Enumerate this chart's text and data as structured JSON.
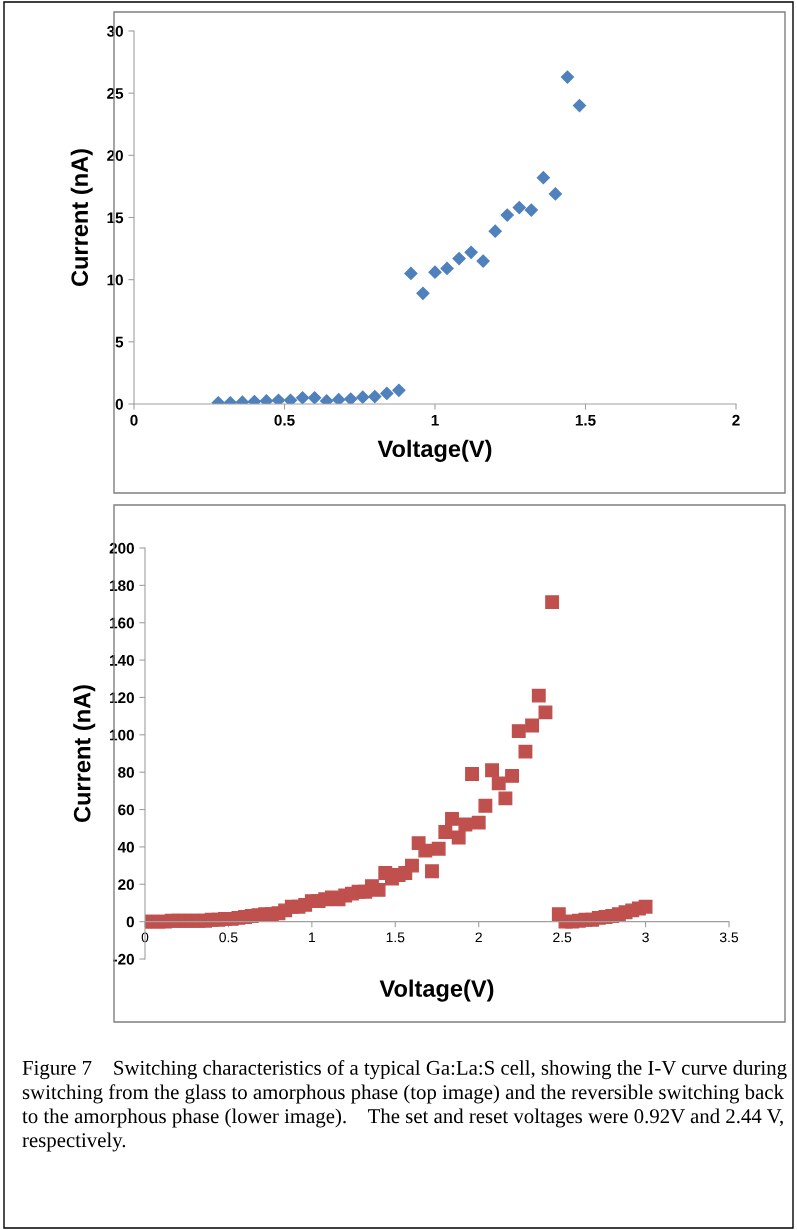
{
  "chart_data": [
    {
      "type": "scatter",
      "xlabel": "Voltage(V)",
      "ylabel": "Current (nA)",
      "marker": "diamond",
      "grid": false,
      "legend": false,
      "xlim": [
        0,
        2
      ],
      "xticks": [
        0,
        0.5,
        1,
        1.5,
        2
      ],
      "ylim": [
        0,
        30
      ],
      "yticks": [
        0,
        5,
        10,
        15,
        20,
        25,
        30
      ],
      "x": [
        0.28,
        0.32,
        0.36,
        0.4,
        0.44,
        0.48,
        0.52,
        0.56,
        0.6,
        0.64,
        0.68,
        0.72,
        0.76,
        0.8,
        0.84,
        0.88,
        0.92,
        0.96,
        1.0,
        1.04,
        1.08,
        1.12,
        1.16,
        1.2,
        1.24,
        1.28,
        1.32,
        1.36,
        1.4,
        1.44,
        1.48
      ],
      "series": [
        {
          "color": "#4f81bd",
          "values": [
            0.1,
            0.1,
            0.15,
            0.2,
            0.25,
            0.3,
            0.3,
            0.5,
            0.5,
            0.25,
            0.35,
            0.4,
            0.55,
            0.6,
            0.85,
            1.1,
            10.5,
            8.9,
            10.6,
            10.9,
            11.7,
            12.2,
            11.5,
            13.9,
            15.2,
            15.8,
            15.6,
            18.2,
            16.9,
            26.3,
            24.0
          ]
        }
      ]
    },
    {
      "type": "scatter",
      "xlabel": "Voltage(V)",
      "ylabel": "Current (nA)",
      "marker": "square",
      "grid": false,
      "legend": false,
      "xlim": [
        0,
        3.5
      ],
      "xticks": [
        0,
        0.5,
        1,
        1.5,
        2,
        2.5,
        3,
        3.5
      ],
      "ylim": [
        -20,
        200
      ],
      "yticks": [
        -20,
        0,
        20,
        40,
        60,
        80,
        100,
        120,
        140,
        160,
        180,
        200
      ],
      "x": [
        0,
        0.04,
        0.08,
        0.12,
        0.16,
        0.2,
        0.24,
        0.28,
        0.32,
        0.36,
        0.4,
        0.44,
        0.48,
        0.52,
        0.56,
        0.6,
        0.64,
        0.68,
        0.72,
        0.76,
        0.8,
        0.84,
        0.88,
        0.92,
        0.96,
        1.0,
        1.04,
        1.08,
        1.12,
        1.16,
        1.2,
        1.24,
        1.28,
        1.32,
        1.36,
        1.4,
        1.44,
        1.48,
        1.52,
        1.56,
        1.6,
        1.64,
        1.68,
        1.72,
        1.76,
        1.8,
        1.84,
        1.88,
        1.92,
        1.96,
        2.0,
        2.04,
        2.08,
        2.12,
        2.16,
        2.2,
        2.24,
        2.28,
        2.32,
        2.36,
        2.4,
        2.44,
        2.48,
        2.52,
        2.56,
        2.6,
        2.64,
        2.68,
        2.72,
        2.76,
        2.8,
        2.84,
        2.88,
        2.92,
        2.96,
        3.0
      ],
      "series": [
        {
          "color": "#c0504d",
          "values": [
            0,
            0,
            0,
            0,
            0.5,
            0.5,
            0.5,
            0.5,
            0.5,
            0.5,
            1,
            1,
            1.5,
            1.5,
            2,
            2.5,
            3,
            3.5,
            4,
            4,
            4.5,
            6,
            8,
            8,
            9,
            11,
            11,
            12,
            13,
            12,
            14,
            15,
            16,
            16,
            19,
            17,
            26,
            23,
            25,
            26,
            30,
            42,
            38,
            27,
            39,
            48,
            55,
            45,
            52,
            79,
            53,
            62,
            81,
            74,
            66,
            78,
            102,
            91,
            105,
            121,
            112,
            171,
            4,
            0,
            0,
            0.5,
            1,
            1,
            2,
            2.5,
            3,
            4,
            5,
            6,
            7,
            8
          ]
        }
      ],
      "annotations": [
        "Figure 7    Switching characteristics of a typical Ga:La:S cell, showing the I-V curve during switching from the glass to amorphous phase (top image) and the reversible switching back to the amorphous phase (lower image).    The set and reset voltages were 0.92V and 2.44 V, respectively."
      ]
    }
  ]
}
